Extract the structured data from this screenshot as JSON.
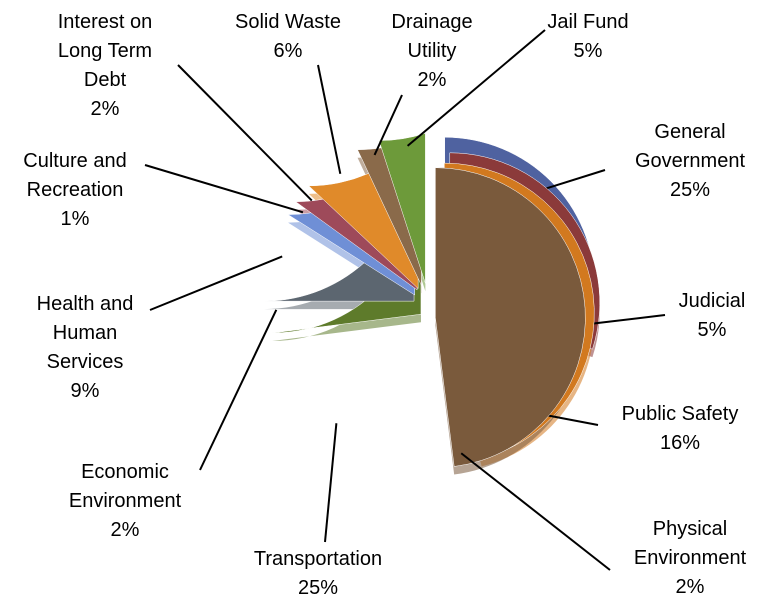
{
  "chart_data": {
    "type": "pie",
    "categories": [
      "General Government",
      "Judicial",
      "Public Safety",
      "Physical Environment",
      "Transportation",
      "Economic Environment",
      "Health and Human Services",
      "Culture and Recreation",
      "Interest on Long Term Debt",
      "Solid Waste",
      "Drainage Utility",
      "Jail Fund"
    ],
    "values": [
      25,
      5,
      16,
      2,
      25,
      2,
      9,
      1,
      2,
      6,
      2,
      5
    ],
    "value_labels": [
      "25%",
      "5%",
      "16%",
      "2%",
      "25%",
      "2%",
      "9%",
      "1%",
      "2%",
      "6%",
      "2%",
      "5%"
    ],
    "colors": [
      "#4f62a0",
      "#8b3a3a",
      "#d2791f",
      "#7a5a3c",
      "#5e7b2b",
      "#5c6670",
      "#6f8fd6",
      "#9e4a5a",
      "#e08a2a",
      "#8a6a4a",
      "#6d9a3a",
      "#7f8c96"
    ]
  }
}
